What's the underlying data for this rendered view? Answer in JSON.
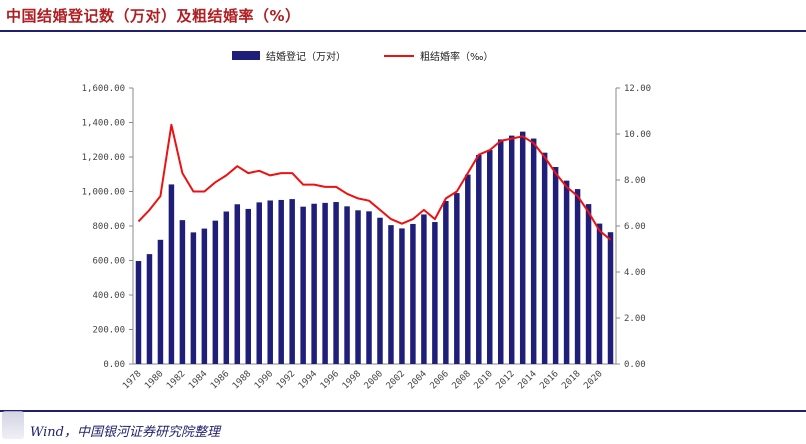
{
  "title": "中国结婚登记数（万对）及粗结婚率（%）",
  "source": "Wind，中国银河证券研究院整理",
  "chart_data": {
    "type": "bar",
    "title": "中国结婚登记数（万对）及粗结婚率（%）",
    "grid": false,
    "legend": {
      "position": "top-center",
      "entries": [
        "结婚登记（万对）",
        "粗结婚率（‰）"
      ]
    },
    "x": [
      1978,
      1979,
      1980,
      1981,
      1982,
      1983,
      1984,
      1985,
      1986,
      1987,
      1988,
      1989,
      1990,
      1991,
      1992,
      1993,
      1994,
      1995,
      1996,
      1997,
      1998,
      1999,
      2000,
      2001,
      2002,
      2003,
      2004,
      2005,
      2006,
      2007,
      2008,
      2009,
      2010,
      2011,
      2012,
      2013,
      2014,
      2015,
      2016,
      2017,
      2018,
      2019,
      2020,
      2021
    ],
    "x_tick_labels": [
      "1978",
      "1980",
      "1982",
      "1984",
      "1986",
      "1988",
      "1990",
      "1992",
      "1994",
      "1996",
      "1998",
      "2000",
      "2002",
      "2004",
      "2006",
      "2008",
      "2010",
      "2012",
      "2014",
      "2016",
      "2018",
      "2020"
    ],
    "y_left": {
      "ylim": [
        0,
        1600
      ],
      "ticks": [
        "0.00",
        "200.00",
        "400.00",
        "600.00",
        "800.00",
        "1,000.00",
        "1,200.00",
        "1,400.00",
        "1,600.00"
      ]
    },
    "y_right": {
      "ylim": [
        0,
        12
      ],
      "ticks": [
        "0.00",
        "2.00",
        "4.00",
        "6.00",
        "8.00",
        "10.00",
        "12.00"
      ]
    },
    "series": [
      {
        "name": "结婚登记（万对）",
        "type": "bar",
        "axis": "left",
        "color": "#1f1f7a",
        "values": [
          597,
          637,
          720,
          1041,
          834,
          763,
          785,
          831,
          884,
          926,
          899,
          937,
          948,
          951,
          956,
          912,
          929,
          934,
          939,
          914,
          891,
          885,
          848,
          805,
          786,
          812,
          867,
          823,
          945,
          991,
          1098,
          1212,
          1241,
          1302,
          1324,
          1347,
          1307,
          1225,
          1142,
          1063,
          1014,
          927,
          814,
          764
        ]
      },
      {
        "name": "粗结婚率（‰）",
        "type": "line",
        "axis": "right",
        "color": "#ee1111",
        "values": [
          6.2,
          6.7,
          7.3,
          10.4,
          8.3,
          7.5,
          7.5,
          7.9,
          8.2,
          8.6,
          8.3,
          8.4,
          8.2,
          8.3,
          8.3,
          7.8,
          7.8,
          7.7,
          7.7,
          7.4,
          7.2,
          7.1,
          6.7,
          6.3,
          6.1,
          6.3,
          6.7,
          6.3,
          7.2,
          7.5,
          8.3,
          9.1,
          9.3,
          9.7,
          9.8,
          9.9,
          9.6,
          9.0,
          8.3,
          7.7,
          7.3,
          6.6,
          5.8,
          5.4
        ]
      }
    ]
  }
}
